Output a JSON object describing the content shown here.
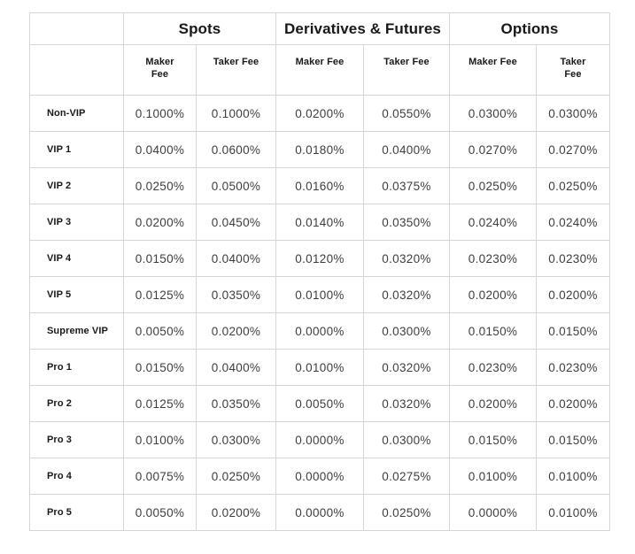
{
  "chart_data": {
    "type": "table",
    "column_groups": [
      {
        "label": "Spots",
        "columns": [
          "Maker\nFee",
          "Taker Fee"
        ]
      },
      {
        "label": "Derivatives & Futures",
        "columns": [
          "Maker Fee",
          "Taker Fee"
        ]
      },
      {
        "label": "Options",
        "columns": [
          "Maker Fee",
          "Taker\nFee"
        ]
      }
    ],
    "rows": [
      {
        "tier": "Non-VIP",
        "values": [
          "0.1000%",
          "0.1000%",
          "0.0200%",
          "0.0550%",
          "0.0300%",
          "0.0300%"
        ]
      },
      {
        "tier": "VIP 1",
        "values": [
          "0.0400%",
          "0.0600%",
          "0.0180%",
          "0.0400%",
          "0.0270%",
          "0.0270%"
        ]
      },
      {
        "tier": "VIP 2",
        "values": [
          "0.0250%",
          "0.0500%",
          "0.0160%",
          "0.0375%",
          "0.0250%",
          "0.0250%"
        ]
      },
      {
        "tier": "VIP 3",
        "values": [
          "0.0200%",
          "0.0450%",
          "0.0140%",
          "0.0350%",
          "0.0240%",
          "0.0240%"
        ]
      },
      {
        "tier": "VIP 4",
        "values": [
          "0.0150%",
          "0.0400%",
          "0.0120%",
          "0.0320%",
          "0.0230%",
          "0.0230%"
        ]
      },
      {
        "tier": "VIP 5",
        "values": [
          "0.0125%",
          "0.0350%",
          "0.0100%",
          "0.0320%",
          "0.0200%",
          "0.0200%"
        ]
      },
      {
        "tier": "Supreme VIP",
        "values": [
          "0.0050%",
          "0.0200%",
          "0.0000%",
          "0.0300%",
          "0.0150%",
          "0.0150%"
        ]
      },
      {
        "tier": "Pro 1",
        "values": [
          "0.0150%",
          "0.0400%",
          "0.0100%",
          "0.0320%",
          "0.0230%",
          "0.0230%"
        ]
      },
      {
        "tier": "Pro 2",
        "values": [
          "0.0125%",
          "0.0350%",
          "0.0050%",
          "0.0320%",
          "0.0200%",
          "0.0200%"
        ]
      },
      {
        "tier": "Pro 3",
        "values": [
          "0.0100%",
          "0.0300%",
          "0.0000%",
          "0.0300%",
          "0.0150%",
          "0.0150%"
        ]
      },
      {
        "tier": "Pro 4",
        "values": [
          "0.0075%",
          "0.0250%",
          "0.0000%",
          "0.0275%",
          "0.0100%",
          "0.0100%"
        ]
      },
      {
        "tier": "Pro 5",
        "values": [
          "0.0050%",
          "0.0200%",
          "0.0000%",
          "0.0250%",
          "0.0000%",
          "0.0100%"
        ]
      }
    ],
    "layout_hints": {
      "grid": "all-borders",
      "header_rows": 2,
      "tier_column_align": "left",
      "value_align": "center"
    }
  },
  "colors": {
    "background": "#ffffff",
    "border": "#d6d6d6",
    "header_text": "#181818",
    "value_text": "#3d3d3d"
  }
}
